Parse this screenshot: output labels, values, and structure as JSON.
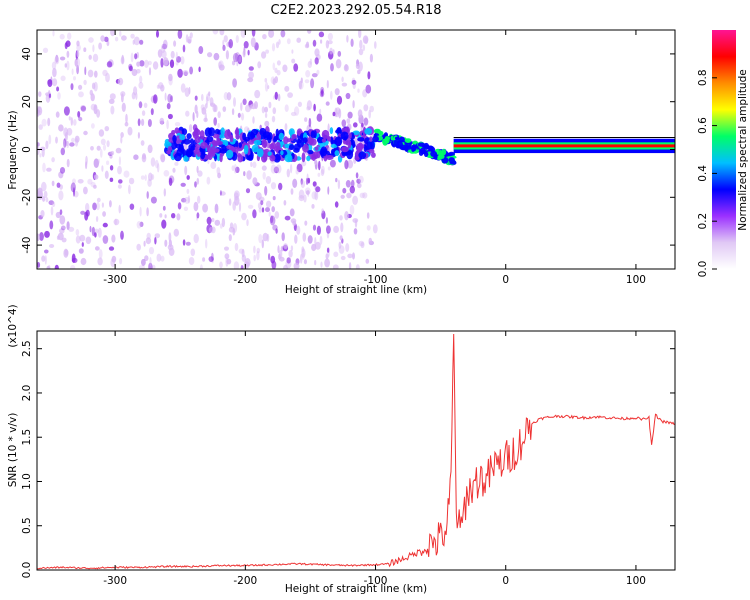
{
  "chart_data": [
    {
      "type": "heatmap",
      "title": "C2E2.2023.292.05.54.R18",
      "xlabel": "Height of straight line (km)",
      "ylabel": "Frequency (Hz)",
      "xlim": [
        -360,
        130
      ],
      "ylim": [
        -50,
        50
      ],
      "x_ticks": [
        -300,
        -200,
        -100,
        0,
        100
      ],
      "y_ticks": [
        -40,
        -20,
        0,
        20,
        40
      ],
      "colorbar": {
        "label": "Normalized spectral amplitude",
        "range": [
          0,
          1
        ],
        "ticks": [
          0.0,
          0.2,
          0.4,
          0.6,
          0.8
        ],
        "colors": [
          "#ffffff",
          "#d9b8f5",
          "#8a2be2",
          "#0000ff",
          "#00bfff",
          "#00ff66",
          "#ffff00",
          "#ff8c00",
          "#ff0000",
          "#ff1493"
        ]
      },
      "features": [
        {
          "name": "diffuse noise",
          "x_range": [
            -360,
            -100
          ],
          "freq_range": [
            -50,
            50
          ],
          "level": 0.08
        },
        {
          "name": "main band",
          "x_range": [
            -260,
            -100
          ],
          "freq_center": 2,
          "freq_halfwidth": 6,
          "level": 0.22
        },
        {
          "name": "transition",
          "x_range": [
            -100,
            -40
          ],
          "freq_start": 6,
          "freq_end": -4,
          "level": 0.5
        },
        {
          "name": "carrier",
          "x_range": [
            -40,
            130
          ],
          "freq_center": 1.5,
          "freq_halfwidth": 1.5,
          "level": 0.9
        }
      ],
      "grid": false
    },
    {
      "type": "line",
      "title": "",
      "xlabel": "Height of straight line (km)",
      "ylabel": "SNR (10 * v/v)",
      "y_multiplier": "(x10^4)",
      "xlim": [
        -360,
        130
      ],
      "ylim": [
        0,
        2.7
      ],
      "x_ticks": [
        -300,
        -200,
        -100,
        0,
        100
      ],
      "y_ticks": [
        0.0,
        0.5,
        1.0,
        1.5,
        2.0,
        2.5
      ],
      "color": "#ee3333",
      "series": [
        {
          "x": [
            -360,
            -340,
            -320,
            -300,
            -280,
            -260,
            -240,
            -220,
            -200,
            -180,
            -160,
            -140,
            -120,
            -100,
            -90,
            -80,
            -70,
            -60,
            -55,
            -50,
            -45,
            -42,
            -40,
            -38,
            -35,
            -30,
            -25,
            -20,
            -15,
            -10,
            -5,
            0,
            5,
            10,
            15,
            20,
            25,
            30,
            40,
            50,
            60,
            70,
            80,
            90,
            100,
            105,
            110,
            112,
            115,
            120,
            130
          ],
          "y": [
            0.02,
            0.03,
            0.02,
            0.03,
            0.03,
            0.04,
            0.04,
            0.05,
            0.05,
            0.06,
            0.07,
            0.06,
            0.05,
            0.06,
            0.07,
            0.12,
            0.18,
            0.25,
            0.32,
            0.35,
            0.5,
            1.0,
            2.65,
            0.7,
            0.4,
            0.85,
            0.95,
            1.05,
            1.0,
            1.15,
            1.2,
            1.25,
            1.32,
            1.4,
            1.55,
            1.65,
            1.7,
            1.72,
            1.74,
            1.73,
            1.72,
            1.73,
            1.72,
            1.71,
            1.72,
            1.7,
            1.72,
            1.4,
            1.75,
            1.68,
            1.65
          ]
        }
      ],
      "grid": false
    }
  ]
}
